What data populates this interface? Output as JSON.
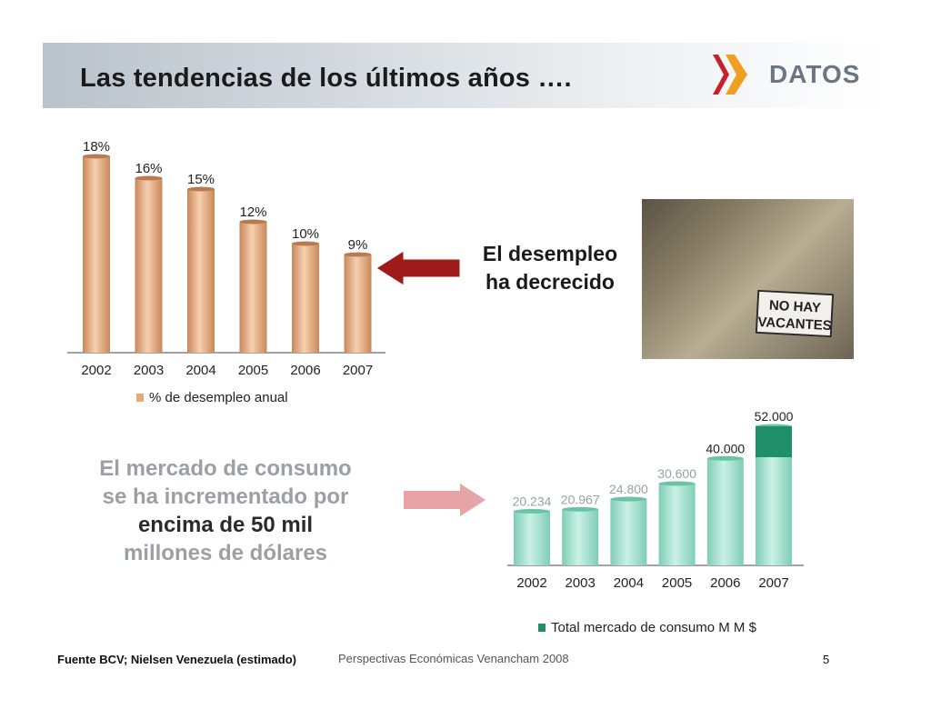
{
  "slide": {
    "title": "Las tendencias de los últimos años ….",
    "logo_text": "DATOS",
    "callout_unemployment": [
      "El desempleo",
      "ha decrecido"
    ],
    "callout_consumption": {
      "line1": "El mercado de consumo",
      "line2": "se ha incrementado por",
      "line3": "encima de 50 mil",
      "line4": "millones de dólares"
    },
    "photo_sign": [
      "NO HAY",
      "VACANTES"
    ],
    "footer_source": "Fuente BCV; Nielsen Venezuela (estimado)",
    "footer_publication": "Perspectivas Económicas Venancham 2008",
    "page_number": "5"
  },
  "colors": {
    "unemployment_bar": "#e8a97a",
    "consumption_bar": "#9de0cc",
    "consumption_top": "#1f8f6a",
    "arrow_dark": "#a11a1a",
    "arrow_light": "#e6a3a8",
    "logo_red": "#c8202a",
    "logo_orange": "#f0a020"
  },
  "chart_data": [
    {
      "type": "bar",
      "categories": [
        "2002",
        "2003",
        "2004",
        "2005",
        "2006",
        "2007"
      ],
      "values": [
        18,
        16,
        15,
        12,
        10,
        9
      ],
      "value_labels": [
        "18%",
        "16%",
        "15%",
        "12%",
        "10%",
        "9%"
      ],
      "series": [
        {
          "name": "% de desempleo anual",
          "values": [
            18,
            16,
            15,
            12,
            10,
            9
          ]
        }
      ],
      "legend": "% de desempleo anual",
      "legend_position": "bottom",
      "ylim": [
        0,
        18
      ],
      "grid": false
    },
    {
      "type": "bar",
      "categories": [
        "2002",
        "2003",
        "2004",
        "2005",
        "2006",
        "2007"
      ],
      "values": [
        20234,
        20967,
        24800,
        30600,
        40000,
        52000
      ],
      "value_labels": [
        "20.234",
        "20.967",
        "24.800",
        "30.600",
        "40.000",
        "52.000"
      ],
      "series": [
        {
          "name": "Total mercado de consumo M M $",
          "values": [
            20234,
            20967,
            24800,
            30600,
            40000,
            52000
          ]
        }
      ],
      "legend": "Total mercado de consumo M M $",
      "legend_position": "bottom",
      "ylim": [
        0,
        52000
      ],
      "grid": false
    }
  ]
}
